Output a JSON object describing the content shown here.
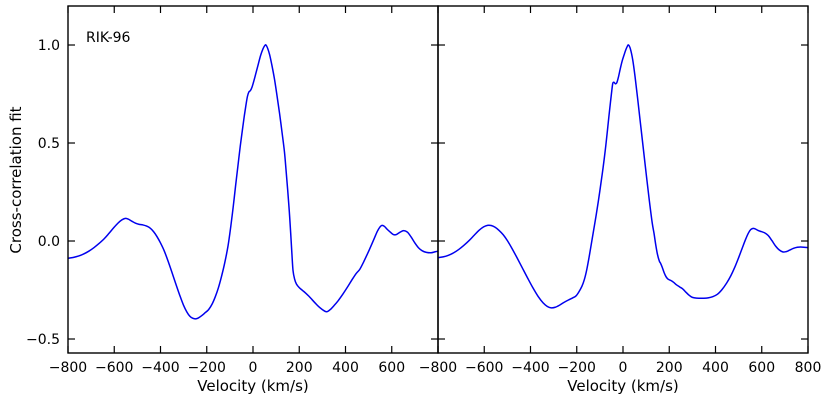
{
  "figure": {
    "ylabel": "Cross-correlation fit",
    "background": "#ffffff",
    "spine_color": "#000000",
    "line_color": "#0000ee"
  },
  "chart_data": [
    {
      "type": "line",
      "annotation": "RIK-96",
      "xlabel": "Velocity (km/s)",
      "ylabel": "Cross-correlation fit",
      "grid": false,
      "legend": null,
      "xlim": [
        -800,
        800
      ],
      "ylim": [
        -0.5714,
        1.199
      ],
      "xtick_values": [
        -800,
        -600,
        -400,
        -200,
        0,
        200,
        400,
        600
      ],
      "xtick_labels": [
        "−800",
        "−600",
        "−400",
        "−200",
        "0",
        "200",
        "400",
        "600"
      ],
      "ytick_values": [
        1.0,
        0.5,
        0.0,
        -0.5
      ],
      "ytick_labels": [
        "1.0",
        "0.5",
        "0.0",
        "−0.5"
      ],
      "show_ytick_labels": true,
      "series": [
        {
          "name": "cross-correlation",
          "color": "#0000ee",
          "points": [
            [
              -800,
              -0.088
            ],
            [
              -778,
              -0.084
            ],
            [
              -755,
              -0.077
            ],
            [
              -732,
              -0.066
            ],
            [
              -710,
              -0.052
            ],
            [
              -688,
              -0.034
            ],
            [
              -665,
              -0.012
            ],
            [
              -643,
              0.012
            ],
            [
              -622,
              0.04
            ],
            [
              -602,
              0.068
            ],
            [
              -585,
              0.09
            ],
            [
              -568,
              0.107
            ],
            [
              -554,
              0.115
            ],
            [
              -540,
              0.112
            ],
            [
              -524,
              0.101
            ],
            [
              -508,
              0.091
            ],
            [
              -492,
              0.085
            ],
            [
              -476,
              0.082
            ],
            [
              -460,
              0.076
            ],
            [
              -445,
              0.066
            ],
            [
              -430,
              0.048
            ],
            [
              -415,
              0.022
            ],
            [
              -400,
              -0.01
            ],
            [
              -384,
              -0.05
            ],
            [
              -368,
              -0.1
            ],
            [
              -351,
              -0.158
            ],
            [
              -334,
              -0.218
            ],
            [
              -317,
              -0.276
            ],
            [
              -301,
              -0.326
            ],
            [
              -286,
              -0.362
            ],
            [
              -273,
              -0.384
            ],
            [
              -261,
              -0.394
            ],
            [
              -249,
              -0.397
            ],
            [
              -237,
              -0.393
            ],
            [
              -222,
              -0.381
            ],
            [
              -207,
              -0.366
            ],
            [
              -192,
              -0.35
            ],
            [
              -177,
              -0.322
            ],
            [
              -163,
              -0.284
            ],
            [
              -150,
              -0.24
            ],
            [
              -136,
              -0.18
            ],
            [
              -122,
              -0.11
            ],
            [
              -108,
              -0.025
            ],
            [
              -96,
              0.075
            ],
            [
              -85,
              0.18
            ],
            [
              -75,
              0.285
            ],
            [
              -65,
              0.385
            ],
            [
              -55,
              0.485
            ],
            [
              -46,
              0.565
            ],
            [
              -38,
              0.635
            ],
            [
              -30,
              0.697
            ],
            [
              -24,
              0.738
            ],
            [
              -18,
              0.76
            ],
            [
              -11,
              0.768
            ],
            [
              -4,
              0.786
            ],
            [
              4,
              0.818
            ],
            [
              13,
              0.858
            ],
            [
              23,
              0.903
            ],
            [
              33,
              0.947
            ],
            [
              43,
              0.98
            ],
            [
              51,
              0.997
            ],
            [
              56,
              1.0
            ],
            [
              63,
              0.984
            ],
            [
              72,
              0.95
            ],
            [
              82,
              0.895
            ],
            [
              93,
              0.825
            ],
            [
              104,
              0.74
            ],
            [
              115,
              0.65
            ],
            [
              126,
              0.55
            ],
            [
              136,
              0.455
            ],
            [
              143,
              0.36
            ],
            [
              150,
              0.26
            ],
            [
              157,
              0.15
            ],
            [
              163,
              0.04
            ],
            [
              168,
              -0.06
            ],
            [
              173,
              -0.15
            ],
            [
              180,
              -0.195
            ],
            [
              188,
              -0.22
            ],
            [
              200,
              -0.238
            ],
            [
              214,
              -0.252
            ],
            [
              228,
              -0.266
            ],
            [
              242,
              -0.282
            ],
            [
              256,
              -0.3
            ],
            [
              270,
              -0.318
            ],
            [
              285,
              -0.336
            ],
            [
              300,
              -0.35
            ],
            [
              312,
              -0.359
            ],
            [
              322,
              -0.36
            ],
            [
              334,
              -0.35
            ],
            [
              350,
              -0.33
            ],
            [
              368,
              -0.305
            ],
            [
              388,
              -0.272
            ],
            [
              408,
              -0.236
            ],
            [
              428,
              -0.198
            ],
            [
              446,
              -0.166
            ],
            [
              462,
              -0.144
            ],
            [
              478,
              -0.108
            ],
            [
              494,
              -0.068
            ],
            [
              510,
              -0.026
            ],
            [
              525,
              0.015
            ],
            [
              538,
              0.05
            ],
            [
              550,
              0.073
            ],
            [
              558,
              0.08
            ],
            [
              568,
              0.075
            ],
            [
              580,
              0.06
            ],
            [
              594,
              0.045
            ],
            [
              607,
              0.033
            ],
            [
              620,
              0.033
            ],
            [
              636,
              0.045
            ],
            [
              652,
              0.053
            ],
            [
              668,
              0.045
            ],
            [
              684,
              0.02
            ],
            [
              700,
              -0.01
            ],
            [
              716,
              -0.035
            ],
            [
              732,
              -0.05
            ],
            [
              750,
              -0.058
            ],
            [
              770,
              -0.06
            ],
            [
              788,
              -0.055
            ],
            [
              800,
              -0.052
            ]
          ]
        }
      ]
    },
    {
      "type": "line",
      "annotation": "",
      "xlabel": "Velocity (km/s)",
      "ylabel": "",
      "grid": false,
      "legend": null,
      "xlim": [
        -800,
        800
      ],
      "ylim": [
        -0.5714,
        1.199
      ],
      "xtick_values": [
        -800,
        -600,
        -400,
        -200,
        0,
        200,
        400,
        600,
        800
      ],
      "xtick_labels": [
        "−800",
        "−600",
        "−400",
        "−200",
        "0",
        "200",
        "400",
        "600",
        "800"
      ],
      "ytick_values": [
        1.0,
        0.5,
        0.0,
        -0.5
      ],
      "ytick_labels": [
        "1.0",
        "0.5",
        "0.0",
        "−0.5"
      ],
      "show_ytick_labels": false,
      "series": [
        {
          "name": "cross-correlation",
          "color": "#0000ee",
          "points": [
            [
              -800,
              -0.085
            ],
            [
              -778,
              -0.081
            ],
            [
              -755,
              -0.073
            ],
            [
              -732,
              -0.06
            ],
            [
              -710,
              -0.043
            ],
            [
              -688,
              -0.022
            ],
            [
              -665,
              0.003
            ],
            [
              -643,
              0.03
            ],
            [
              -622,
              0.055
            ],
            [
              -603,
              0.072
            ],
            [
              -586,
              0.08
            ],
            [
              -570,
              0.079
            ],
            [
              -553,
              0.07
            ],
            [
              -536,
              0.054
            ],
            [
              -518,
              0.032
            ],
            [
              -500,
              0.002
            ],
            [
              -480,
              -0.038
            ],
            [
              -458,
              -0.086
            ],
            [
              -435,
              -0.138
            ],
            [
              -412,
              -0.19
            ],
            [
              -389,
              -0.24
            ],
            [
              -367,
              -0.283
            ],
            [
              -346,
              -0.315
            ],
            [
              -327,
              -0.334
            ],
            [
              -310,
              -0.341
            ],
            [
              -293,
              -0.338
            ],
            [
              -274,
              -0.327
            ],
            [
              -255,
              -0.313
            ],
            [
              -236,
              -0.301
            ],
            [
              -217,
              -0.29
            ],
            [
              -204,
              -0.281
            ],
            [
              -192,
              -0.262
            ],
            [
              -178,
              -0.232
            ],
            [
              -167,
              -0.196
            ],
            [
              -157,
              -0.148
            ],
            [
              -147,
              -0.085
            ],
            [
              -137,
              -0.015
            ],
            [
              -127,
              0.055
            ],
            [
              -117,
              0.125
            ],
            [
              -107,
              0.2
            ],
            [
              -96,
              0.29
            ],
            [
              -86,
              0.375
            ],
            [
              -77,
              0.46
            ],
            [
              -69,
              0.545
            ],
            [
              -61,
              0.635
            ],
            [
              -54,
              0.71
            ],
            [
              -48,
              0.772
            ],
            [
              -44,
              0.805
            ],
            [
              -39,
              0.81
            ],
            [
              -33,
              0.802
            ],
            [
              -27,
              0.807
            ],
            [
              -20,
              0.835
            ],
            [
              -12,
              0.878
            ],
            [
              -4,
              0.917
            ],
            [
              4,
              0.947
            ],
            [
              12,
              0.975
            ],
            [
              19,
              0.994
            ],
            [
              24,
              1.0
            ],
            [
              32,
              0.98
            ],
            [
              42,
              0.925
            ],
            [
              52,
              0.84
            ],
            [
              63,
              0.73
            ],
            [
              75,
              0.605
            ],
            [
              88,
              0.47
            ],
            [
              101,
              0.335
            ],
            [
              114,
              0.205
            ],
            [
              126,
              0.095
            ],
            [
              134,
              0.04
            ],
            [
              141,
              -0.015
            ],
            [
              149,
              -0.068
            ],
            [
              157,
              -0.102
            ],
            [
              163,
              -0.115
            ],
            [
              170,
              -0.135
            ],
            [
              178,
              -0.162
            ],
            [
              186,
              -0.182
            ],
            [
              195,
              -0.195
            ],
            [
              206,
              -0.201
            ],
            [
              218,
              -0.21
            ],
            [
              232,
              -0.224
            ],
            [
              246,
              -0.235
            ],
            [
              259,
              -0.245
            ],
            [
              272,
              -0.261
            ],
            [
              285,
              -0.276
            ],
            [
              297,
              -0.286
            ],
            [
              310,
              -0.29
            ],
            [
              328,
              -0.292
            ],
            [
              348,
              -0.292
            ],
            [
              368,
              -0.29
            ],
            [
              388,
              -0.284
            ],
            [
              408,
              -0.272
            ],
            [
              428,
              -0.248
            ],
            [
              448,
              -0.215
            ],
            [
              466,
              -0.178
            ],
            [
              483,
              -0.135
            ],
            [
              500,
              -0.085
            ],
            [
              516,
              -0.035
            ],
            [
              530,
              0.008
            ],
            [
              542,
              0.04
            ],
            [
              552,
              0.058
            ],
            [
              561,
              0.064
            ],
            [
              571,
              0.062
            ],
            [
              584,
              0.054
            ],
            [
              598,
              0.048
            ],
            [
              612,
              0.042
            ],
            [
              628,
              0.028
            ],
            [
              644,
              0.002
            ],
            [
              660,
              -0.026
            ],
            [
              676,
              -0.046
            ],
            [
              692,
              -0.056
            ],
            [
              706,
              -0.054
            ],
            [
              720,
              -0.047
            ],
            [
              736,
              -0.038
            ],
            [
              754,
              -0.032
            ],
            [
              774,
              -0.031
            ],
            [
              800,
              -0.034
            ]
          ]
        }
      ]
    }
  ]
}
